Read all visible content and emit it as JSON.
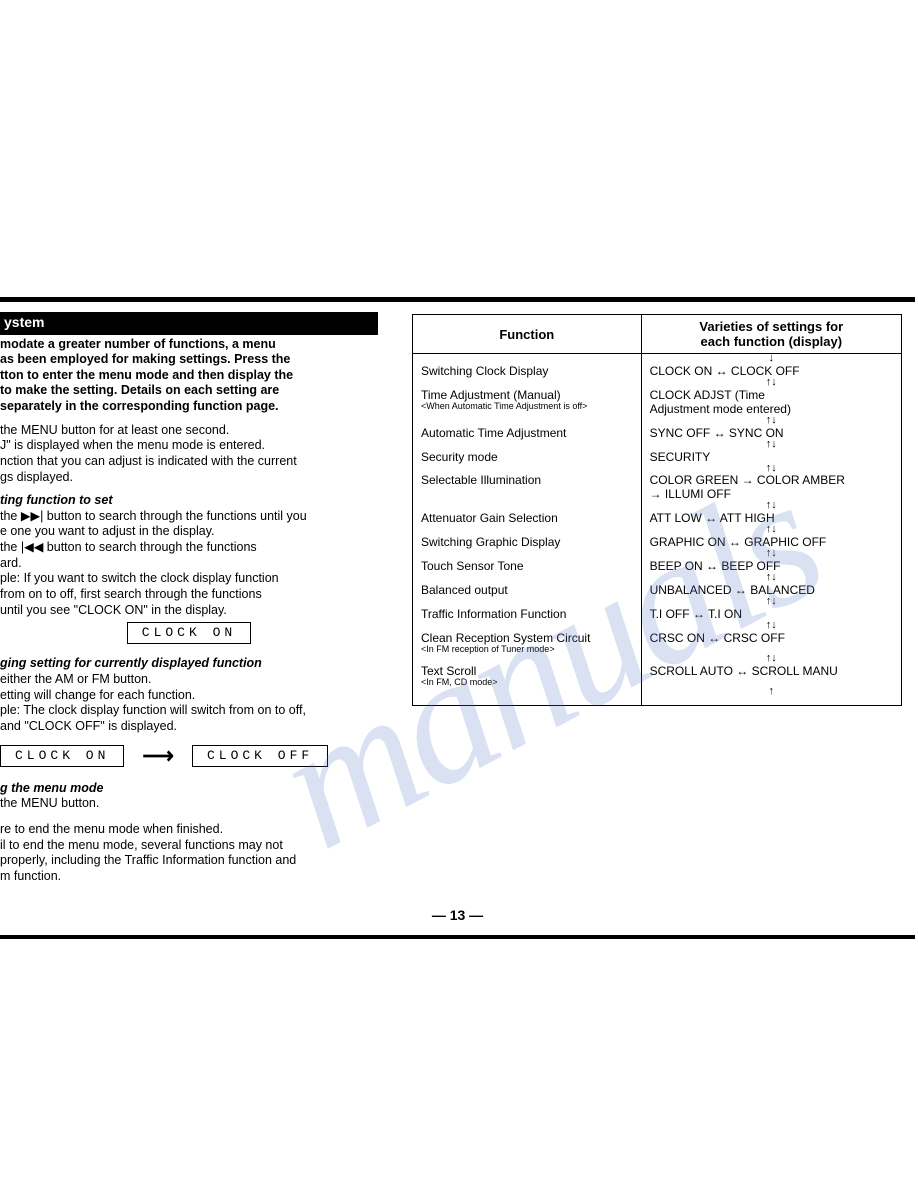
{
  "watermark": "manuals",
  "left": {
    "header": "ystem",
    "intro_bold": "modate a greater number of functions, a menu\nas been employed for making settings.  Press the\ntton to enter the menu mode and then display the\nto make the setting.  Details on each setting are\n separately in the corresponding function page.",
    "p1a": " the MENU button for at least one second.",
    "p1b": "J\" is displayed when the menu mode is entered.",
    "p1c": "nction that you can adjust is indicated with the current\ngs displayed.",
    "h2": "ting function to set",
    "p2a": " the ▶▶| button to search through the functions until you",
    "p2b": "e one you want to adjust in the display.",
    "p2c": " the |◀◀ button to search through the functions",
    "p2d": "ard.",
    "p2e": "ple: If you want to switch the clock display function\n     from on to off, first search through the functions\n     until you see \"CLOCK ON\" in the display.",
    "lcd1": "CLOCK  ON",
    "h3": "ging setting for currently displayed function",
    "p3a": " either the AM or FM button.",
    "p3b": "etting will change for each function.",
    "p3c": "ple: The clock display function will switch from on to off,\n     and \"CLOCK OFF\" is displayed.",
    "lcd2": "CLOCK  ON",
    "lcd3": "CLOCK  OFF",
    "h4": "g the menu mode",
    "p4a": " the MENU button.",
    "p5a": "re to end the menu mode when finished.",
    "p5b": "il to end the menu mode, several functions may not",
    "p5c": " properly, including the Traffic Information function and",
    "p5d": "m function."
  },
  "table": {
    "col1": "Function",
    "col2": "Varieties of settings for\neach function (display)",
    "rows": [
      {
        "f": "Switching Clock Display",
        "sub": "",
        "s": "CLOCK ON ↔ CLOCK OFF"
      },
      {
        "f": "Time Adjustment (Manual)",
        "sub": "<When Automatic Time Adjustment is off>",
        "s": "CLOCK ADJST (Time\nAdjustment mode entered)"
      },
      {
        "f": "Automatic Time Adjustment",
        "sub": "",
        "s": "SYNC OFF ↔ SYNC ON"
      },
      {
        "f": "Security mode",
        "sub": "",
        "s": "SECURITY"
      },
      {
        "f": "Selectable Illumination",
        "sub": "",
        "s": "COLOR GREEN → COLOR AMBER\n→ ILLUMI OFF"
      },
      {
        "f": "Attenuator Gain Selection",
        "sub": "",
        "s": "ATT LOW ↔ ATT HIGH"
      },
      {
        "f": "Switching Graphic Display",
        "sub": "",
        "s": "GRAPHIC ON ↔ GRAPHIC OFF"
      },
      {
        "f": "Touch Sensor Tone",
        "sub": "",
        "s": "BEEP ON ↔ BEEP OFF"
      },
      {
        "f": "Balanced output",
        "sub": "",
        "s": "UNBALANCED ↔ BALANCED"
      },
      {
        "f": "Traffic Information Function",
        "sub": "",
        "s": "T.I OFF ↔ T.I ON"
      },
      {
        "f": "Clean Reception System Circuit",
        "sub": "<In FM reception of Tuner mode>",
        "s": "CRSC ON ↔ CRSC OFF"
      },
      {
        "f": "Text Scroll",
        "sub": "<In FM, CD mode>",
        "s": "SCROLL AUTO ↔ SCROLL MANU"
      }
    ],
    "connector_both": "↑↓",
    "connector_down": "↓",
    "connector_up": "↑"
  },
  "page_number": "— 13 —",
  "arrow": "⟶"
}
